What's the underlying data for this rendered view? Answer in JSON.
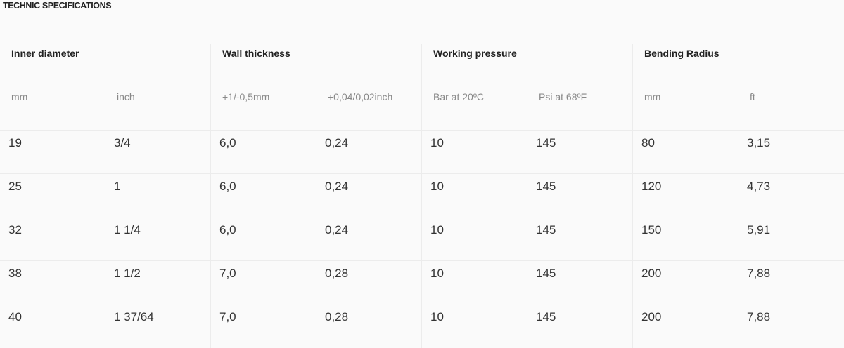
{
  "title": "TECHNIC SPECIFICATIONS",
  "groups": [
    {
      "label": "Inner diameter",
      "units": [
        "mm",
        "inch"
      ]
    },
    {
      "label": "Wall thickness",
      "units": [
        "+1/-0,5mm",
        "+0,04/0,02inch"
      ]
    },
    {
      "label": "Working pressure",
      "units": [
        "Bar at 20ºC",
        "Psi at 68ºF"
      ]
    },
    {
      "label": "Bending Radius",
      "units": [
        "mm",
        "ft"
      ]
    }
  ],
  "rows": [
    [
      "19",
      "3/4",
      "6,0",
      "0,24",
      "10",
      "145",
      "80",
      "3,15"
    ],
    [
      "25",
      "1",
      "6,0",
      "0,24",
      "10",
      "145",
      "120",
      "4,73"
    ],
    [
      "32",
      "1 1/4",
      "6,0",
      "0,24",
      "10",
      "145",
      "150",
      "5,91"
    ],
    [
      "38",
      "1 1/2",
      "7,0",
      "0,28",
      "10",
      "145",
      "200",
      "7,88"
    ],
    [
      "40",
      "1 37/64",
      "7,0",
      "0,28",
      "10",
      "145",
      "200",
      "7,88"
    ]
  ]
}
